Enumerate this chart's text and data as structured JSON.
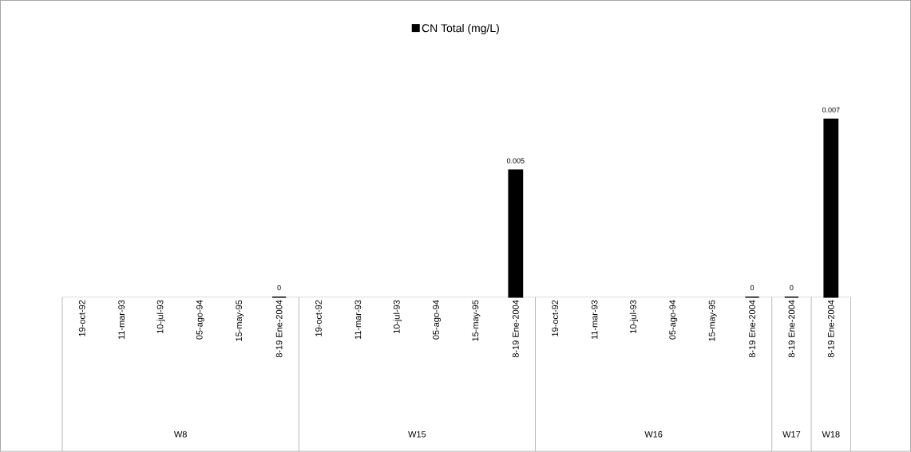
{
  "chart_data": {
    "type": "bar",
    "categories": [
      "19-oct-92",
      "11-mar-93",
      "10-jul-93",
      "05-ago-94",
      "15-may-95",
      "8-19 Ene-2004",
      "19-oct-92",
      "11-mar-93",
      "10-jul-93",
      "05-ago-94",
      "15-may-95",
      "8-19 Ene-2004",
      "19-oct-92",
      "11-mar-93",
      "10-jul-93",
      "05-ago-94",
      "15-may-95",
      "8-19 Ene-2004",
      "8-19 Ene-2004",
      "8-19 Ene-2004"
    ],
    "series": [
      {
        "name": "CN Total (mg/L)",
        "color": "#000000",
        "values": [
          null,
          null,
          null,
          null,
          null,
          0,
          null,
          null,
          null,
          null,
          null,
          0.005,
          null,
          null,
          null,
          null,
          null,
          0,
          0,
          0.007
        ]
      }
    ],
    "annotations": [
      "W8",
      "W15",
      "W16",
      "W17",
      "W18"
    ],
    "data_labels": true,
    "legend": "top"
  }
}
